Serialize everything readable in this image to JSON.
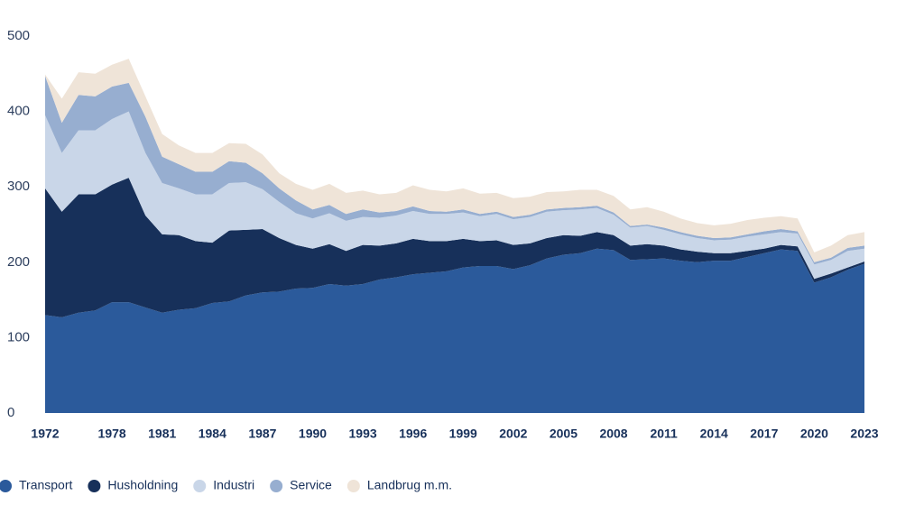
{
  "chart_data": {
    "type": "stacked-area",
    "categories": [
      "1972",
      null,
      null,
      null,
      "1978",
      null,
      null,
      "1981",
      null,
      null,
      "1984",
      null,
      null,
      "1987",
      null,
      null,
      "1990",
      null,
      null,
      "1993",
      null,
      null,
      "1996",
      null,
      null,
      "1999",
      null,
      null,
      "2002",
      null,
      null,
      "2005",
      null,
      null,
      "2008",
      null,
      null,
      "2011",
      null,
      null,
      "2014",
      null,
      null,
      "2017",
      null,
      null,
      "2020",
      null,
      null,
      "2023"
    ],
    "series": [
      {
        "name": "Transport",
        "color": "#2b5a9b",
        "values": [
          130,
          127,
          133,
          136,
          147,
          147,
          140,
          133,
          137,
          139,
          146,
          148,
          156,
          160,
          161,
          165,
          166,
          171,
          169,
          171,
          177,
          180,
          184,
          186,
          188,
          193,
          195,
          195,
          191,
          196,
          205,
          210,
          212,
          218,
          216,
          203,
          204,
          205,
          202,
          200,
          202,
          202,
          207,
          212,
          217,
          215,
          173,
          180,
          190,
          198
        ]
      },
      {
        "name": "Husholdning",
        "color": "#17305a",
        "values": [
          168,
          140,
          157,
          154,
          156,
          165,
          122,
          104,
          99,
          89,
          80,
          94,
          87,
          84,
          71,
          58,
          52,
          53,
          46,
          52,
          45,
          45,
          47,
          42,
          40,
          38,
          33,
          34,
          32,
          29,
          27,
          26,
          23,
          22,
          20,
          19,
          20,
          17,
          15,
          14,
          10,
          10,
          8,
          6,
          6,
          6,
          5,
          5,
          3,
          3
        ]
      },
      {
        "name": "Industri",
        "color": "#c9d6e8",
        "values": [
          97,
          78,
          85,
          85,
          87,
          88,
          83,
          68,
          62,
          62,
          64,
          63,
          63,
          53,
          48,
          42,
          40,
          41,
          40,
          37,
          37,
          37,
          37,
          36,
          36,
          35,
          33,
          35,
          34,
          35,
          35,
          33,
          35,
          32,
          27,
          24,
          24,
          21,
          20,
          18,
          17,
          18,
          19,
          19,
          17,
          17,
          19,
          18,
          22,
          17
        ]
      },
      {
        "name": "Service",
        "color": "#97aed0",
        "values": [
          52,
          40,
          47,
          45,
          43,
          38,
          48,
          35,
          32,
          30,
          30,
          29,
          26,
          21,
          18,
          17,
          12,
          11,
          9,
          10,
          7,
          6,
          6,
          4,
          3,
          4,
          3,
          3,
          3,
          3,
          3,
          3,
          3,
          3,
          3,
          2,
          2,
          3,
          3,
          3,
          3,
          3,
          3,
          4,
          4,
          3,
          3,
          3,
          4,
          4
        ]
      },
      {
        "name": "Landbrug m.m.",
        "color": "#efe4d8",
        "values": [
          2,
          32,
          30,
          30,
          29,
          32,
          27,
          30,
          25,
          25,
          25,
          24,
          25,
          25,
          20,
          22,
          26,
          28,
          28,
          25,
          24,
          24,
          28,
          28,
          27,
          28,
          27,
          25,
          25,
          24,
          23,
          22,
          23,
          21,
          22,
          22,
          23,
          21,
          18,
          17,
          17,
          18,
          19,
          18,
          17,
          17,
          13,
          16,
          17,
          18
        ]
      }
    ],
    "ylim": [
      0,
      500
    ],
    "yticks": [
      0,
      100,
      200,
      300,
      400,
      500
    ],
    "grid": false
  }
}
